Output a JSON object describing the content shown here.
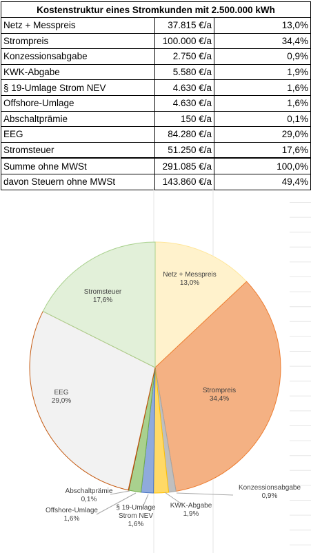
{
  "table": {
    "title": "Kostenstruktur eines Stromkunden mit 2.500.000 kWh",
    "rows": [
      {
        "name": "Netz + Messpreis",
        "amount": "37.815 €/a",
        "share": "13,0%"
      },
      {
        "name": "Strompreis",
        "amount": "100.000 €/a",
        "share": "34,4%"
      },
      {
        "name": "Konzessionsabgabe",
        "amount": "2.750 €/a",
        "share": "0,9%"
      },
      {
        "name": "KWK-Abgabe",
        "amount": "5.580 €/a",
        "share": "1,9%"
      },
      {
        "name": "§ 19-Umlage Strom NEV",
        "amount": "4.630 €/a",
        "share": "1,6%"
      },
      {
        "name": "Offshore-Umlage",
        "amount": "4.630 €/a",
        "share": "1,6%"
      },
      {
        "name": "Abschaltprämie",
        "amount": "150 €/a",
        "share": "0,1%"
      },
      {
        "name": "EEG",
        "amount": "84.280 €/a",
        "share": "29,0%"
      },
      {
        "name": "Stromsteuer",
        "amount": "51.250 €/a",
        "share": "17,6%"
      }
    ],
    "sums": [
      {
        "name": "Summe ohne MWSt",
        "amount": "291.085 €/a",
        "share": "100,0%"
      },
      {
        "name": "davon Steuern ohne MWSt",
        "amount": "143.860 €/a",
        "share": "49,4%"
      }
    ]
  },
  "chart_data": {
    "type": "pie",
    "title": "",
    "start": "12 o'clock, clockwise",
    "categories": [
      "Netz + Messpreis",
      "Strompreis",
      "Konzessionsabgabe",
      "KWK-Abgabe",
      "§ 19-Umlage Strom NEV",
      "Offshore-Umlage",
      "Abschaltprämie",
      "EEG",
      "Stromsteuer"
    ],
    "values": [
      37815,
      100000,
      2750,
      5580,
      4630,
      4630,
      150,
      84280,
      51250
    ],
    "percent_labels": [
      "13,0%",
      "34,4%",
      "0,9%",
      "1,9%",
      "1,6%",
      "1,6%",
      "0,1%",
      "29,0%",
      "17,6%"
    ],
    "label_lines": [
      [
        "Netz + Messpreis"
      ],
      [
        "Strompreis"
      ],
      [
        "Konzessionsabgabe"
      ],
      [
        "KWK-Abgabe"
      ],
      [
        "§ 19-Umlage",
        "Strom NEV"
      ],
      [
        "Offshore-Umlage"
      ],
      [
        "Abschaltprämie"
      ],
      [
        "EEG"
      ],
      [
        "Stromsteuer"
      ]
    ],
    "colors": {
      "fills": [
        "#fff2cc",
        "#f4b183",
        "#bfbfbf",
        "#ffd966",
        "#8faadc",
        "#a9d18e",
        "#c55a11",
        "#f2f2f2",
        "#e2f0d9"
      ],
      "outlines": [
        "#ffe699",
        "#ed7d31",
        "#a5a5a5",
        "#ffc000",
        "#4472c4",
        "#70ad47",
        "#843c0c",
        "#c55a11",
        "#a9d18e"
      ]
    }
  }
}
